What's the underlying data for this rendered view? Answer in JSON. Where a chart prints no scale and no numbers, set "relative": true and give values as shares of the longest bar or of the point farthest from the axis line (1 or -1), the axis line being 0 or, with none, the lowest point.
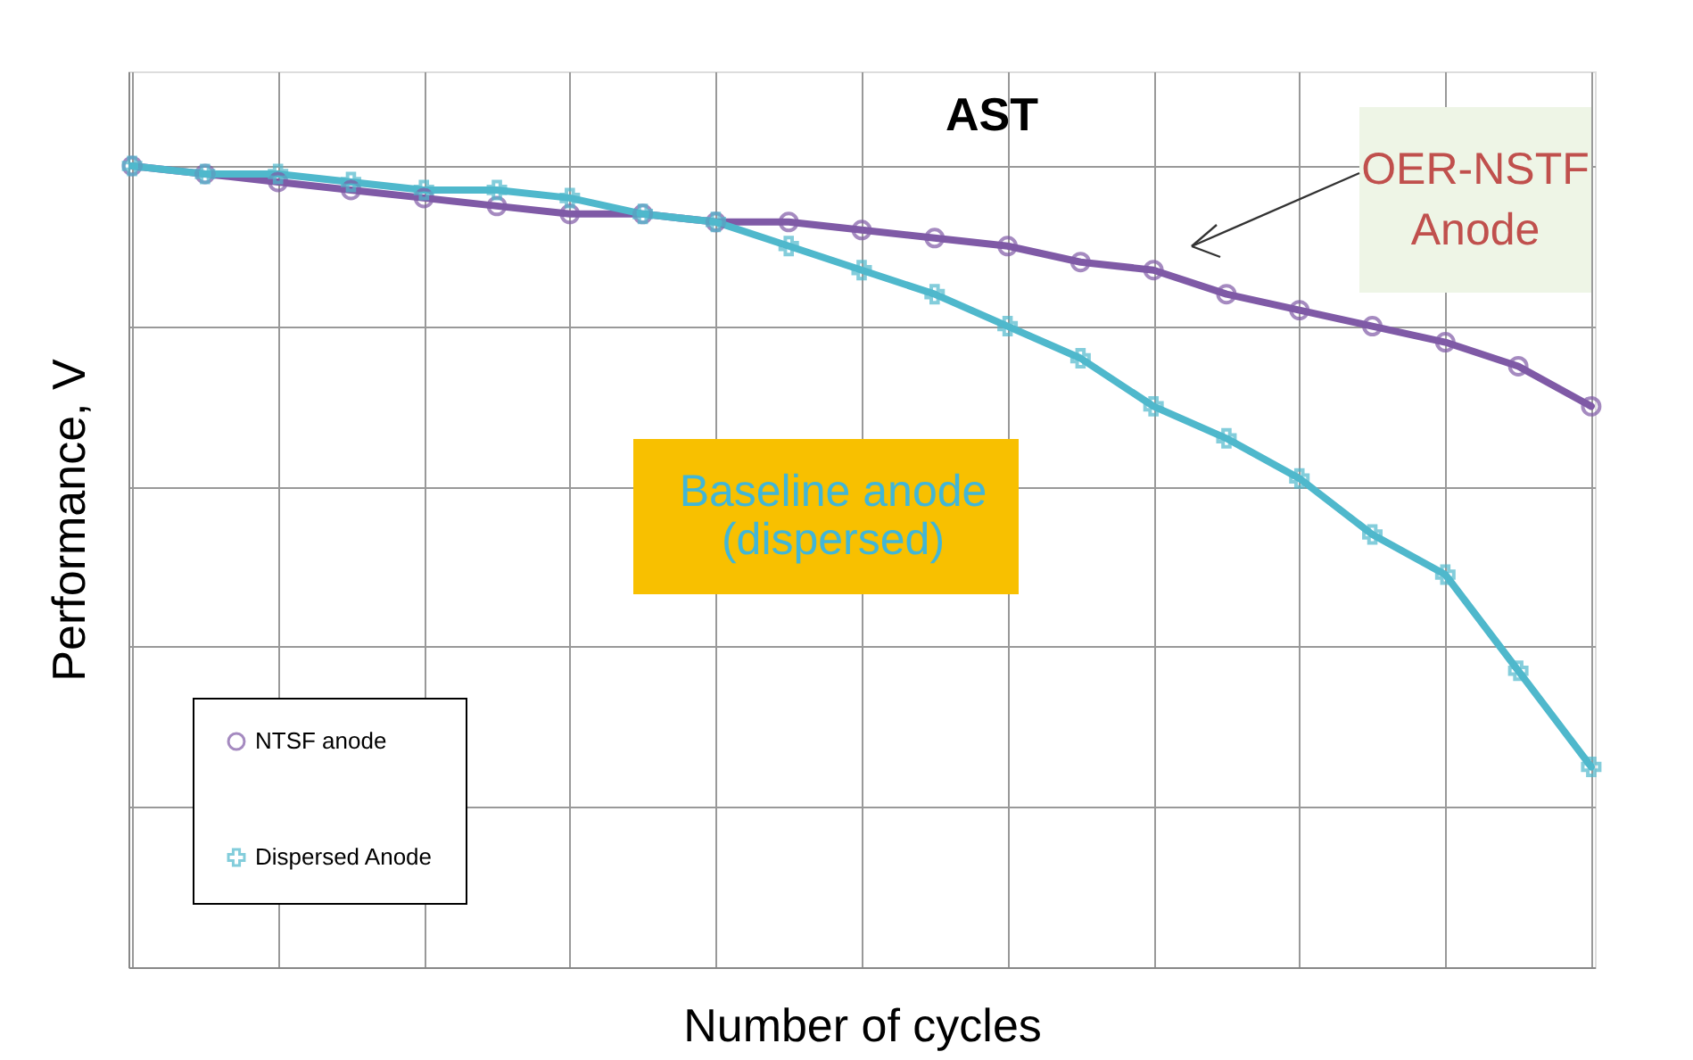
{
  "chart_data": {
    "type": "line",
    "title": "AST",
    "xlabel": "Number of cycles",
    "ylabel": "Performance, V",
    "relative": true,
    "grid": true,
    "legend": "bottom left",
    "categories": [
      null,
      null,
      null,
      null,
      null,
      null,
      null,
      null,
      null,
      null,
      null,
      null,
      null,
      null,
      null,
      null,
      null,
      null,
      null,
      null,
      null
    ],
    "series": [
      {
        "name": "NTSF anode",
        "color": "#7f5aa6",
        "marker": "circle",
        "values": [
          1.0,
          0.99,
          0.98,
          0.97,
          0.96,
          0.95,
          0.94,
          0.94,
          0.93,
          0.93,
          0.92,
          0.91,
          0.9,
          0.88,
          0.87,
          0.84,
          0.82,
          0.8,
          0.78,
          0.75,
          0.7
        ]
      },
      {
        "name": "Dispersed Anode",
        "color": "#4fb8cc",
        "marker": "cross",
        "values": [
          1.0,
          0.99,
          0.99,
          0.98,
          0.97,
          0.97,
          0.96,
          0.94,
          0.93,
          0.9,
          0.87,
          0.84,
          0.8,
          0.76,
          0.7,
          0.66,
          0.61,
          0.54,
          0.49,
          0.37,
          0.25
        ]
      }
    ],
    "annotations": [
      "OER-NSTF\nAnode",
      "Baseline anode\n(dispersed)"
    ]
  }
}
